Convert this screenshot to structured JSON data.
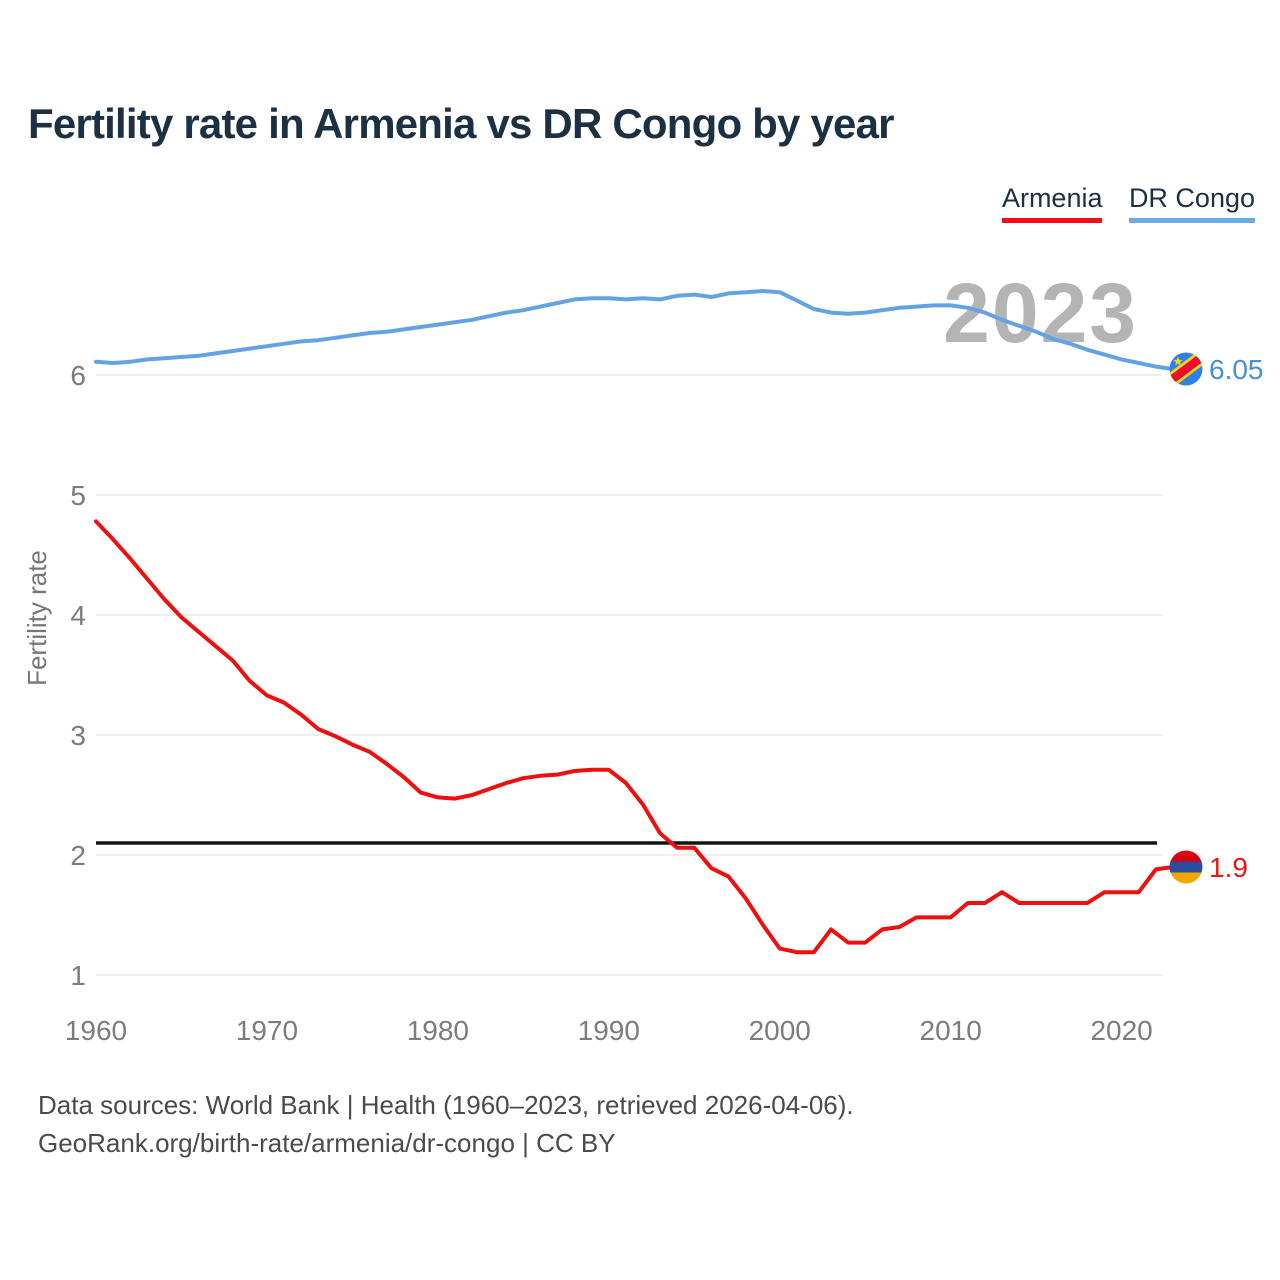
{
  "header": {
    "title": "Fertility rate in Armenia vs DR Congo by year"
  },
  "legend": [
    {
      "label": "Armenia",
      "color": "#ee0f0f"
    },
    {
      "label": "DR Congo",
      "color": "#6aabe8"
    }
  ],
  "watermark": "2023",
  "footer": {
    "line1": "Data sources: World Bank | Health (1960–2023, retrieved 2026-04-06).",
    "line2": "GeoRank.org/birth-rate/armenia/dr-congo | CC BY"
  },
  "chart_data": {
    "type": "line",
    "title": "Fertility rate in Armenia vs DR Congo by year",
    "xlabel": "",
    "ylabel": "Fertility rate",
    "grid": "horizontal",
    "legend_position": "top-right",
    "xlim": [
      1960,
      2023
    ],
    "ylim": [
      1,
      6.8
    ],
    "x_ticks": [
      1960,
      1970,
      1980,
      1990,
      2000,
      2010,
      2020
    ],
    "y_ticks": [
      1,
      2,
      3,
      4,
      5,
      6
    ],
    "reference_line": {
      "value": 2.1,
      "color": "#141414"
    },
    "x_start_year": 1960,
    "series": [
      {
        "name": "Armenia",
        "color": "#ee0f0f",
        "end_label": "1.9",
        "end_label_color": "#e81717",
        "flag": "armenia",
        "values": [
          4.78,
          4.63,
          4.47,
          4.3,
          4.13,
          3.98,
          3.86,
          3.74,
          3.62,
          3.45,
          3.33,
          3.27,
          3.17,
          3.05,
          2.99,
          2.92,
          2.86,
          2.76,
          2.65,
          2.52,
          2.48,
          2.47,
          2.5,
          2.55,
          2.6,
          2.64,
          2.66,
          2.67,
          2.7,
          2.71,
          2.71,
          2.6,
          2.42,
          2.18,
          2.06,
          2.06,
          1.89,
          1.82,
          1.64,
          1.42,
          1.22,
          1.19,
          1.19,
          1.38,
          1.27,
          1.27,
          1.38,
          1.4,
          1.48,
          1.48,
          1.48,
          1.6,
          1.6,
          1.69,
          1.6,
          1.6,
          1.6,
          1.6,
          1.6,
          1.69,
          1.69,
          1.69,
          1.88,
          1.9
        ]
      },
      {
        "name": "DR Congo",
        "color": "#63a3e3",
        "end_label": "6.05",
        "end_label_color": "#4590d9",
        "flag": "dr-congo",
        "values": [
          6.11,
          6.1,
          6.11,
          6.13,
          6.14,
          6.15,
          6.16,
          6.18,
          6.2,
          6.22,
          6.24,
          6.26,
          6.28,
          6.29,
          6.31,
          6.33,
          6.35,
          6.36,
          6.38,
          6.4,
          6.42,
          6.44,
          6.46,
          6.49,
          6.52,
          6.54,
          6.57,
          6.6,
          6.63,
          6.64,
          6.64,
          6.63,
          6.64,
          6.63,
          6.66,
          6.67,
          6.65,
          6.68,
          6.69,
          6.7,
          6.69,
          6.62,
          6.55,
          6.52,
          6.51,
          6.52,
          6.54,
          6.56,
          6.57,
          6.58,
          6.58,
          6.56,
          6.52,
          6.46,
          6.41,
          6.36,
          6.3,
          6.26,
          6.21,
          6.17,
          6.13,
          6.1,
          6.07,
          6.05
        ]
      }
    ]
  },
  "flags": {
    "armenia": {
      "bands": [
        "#d90012",
        "#2b4da0",
        "#f2a800"
      ]
    },
    "dr_congo": {
      "field": "#2f81e8",
      "stripe": "#e8112d",
      "stripe_border": "#f8d411",
      "star": "#f8d411"
    }
  }
}
